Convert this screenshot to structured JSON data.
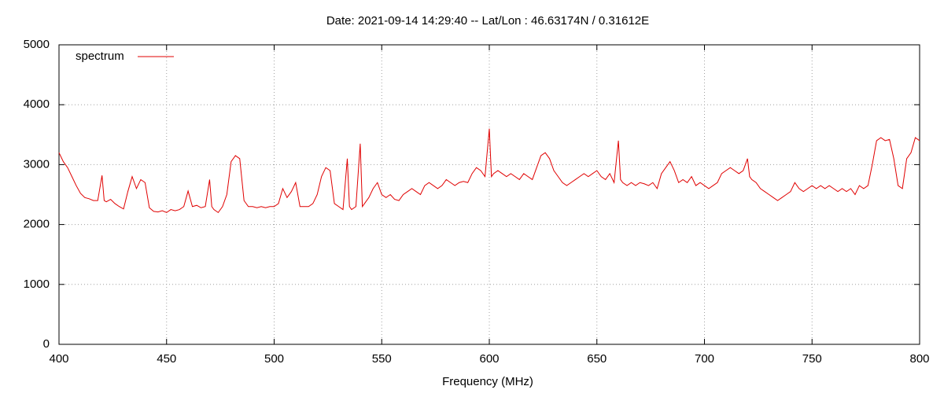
{
  "chart_data": {
    "type": "line",
    "title": "Date: 2021-09-14 14:29:40  --  Lat/Lon : 46.63174N / 0.31612E",
    "x_label": "Frequency (MHz)",
    "x": [
      400,
      402,
      404,
      406,
      408,
      410,
      412,
      414,
      416,
      418,
      420,
      421,
      422,
      424,
      426,
      428,
      430,
      432,
      434,
      436,
      438,
      440,
      442,
      444,
      446,
      448,
      450,
      452,
      454,
      456,
      458,
      460,
      462,
      464,
      466,
      468,
      470,
      471,
      472,
      474,
      476,
      478,
      480,
      482,
      484,
      486,
      488,
      490,
      492,
      494,
      496,
      498,
      500,
      502,
      504,
      506,
      508,
      510,
      512,
      514,
      516,
      518,
      520,
      522,
      524,
      526,
      528,
      530,
      532,
      534,
      535,
      536,
      538,
      540,
      541,
      542,
      544,
      546,
      548,
      550,
      552,
      554,
      556,
      558,
      560,
      562,
      564,
      566,
      568,
      570,
      572,
      574,
      576,
      578,
      580,
      582,
      584,
      586,
      588,
      590,
      592,
      594,
      596,
      598,
      600,
      601,
      602,
      604,
      606,
      608,
      610,
      612,
      614,
      616,
      618,
      620,
      622,
      624,
      626,
      628,
      630,
      632,
      634,
      636,
      638,
      640,
      642,
      644,
      646,
      648,
      650,
      652,
      654,
      656,
      658,
      660,
      661,
      662,
      664,
      666,
      668,
      670,
      672,
      674,
      676,
      678,
      680,
      682,
      684,
      686,
      688,
      690,
      692,
      694,
      696,
      698,
      700,
      702,
      704,
      706,
      708,
      710,
      712,
      714,
      716,
      718,
      720,
      721,
      722,
      724,
      726,
      728,
      730,
      732,
      734,
      736,
      738,
      740,
      742,
      744,
      746,
      748,
      750,
      752,
      754,
      756,
      758,
      760,
      762,
      764,
      766,
      768,
      770,
      772,
      774,
      776,
      778,
      780,
      782,
      784,
      786,
      788,
      790,
      792,
      794,
      796,
      798,
      800
    ],
    "series": [
      {
        "name": "spectrum",
        "color": "#e00000",
        "values": [
          3200,
          3050,
          2950,
          2800,
          2650,
          2520,
          2450,
          2430,
          2400,
          2400,
          2820,
          2400,
          2380,
          2420,
          2350,
          2300,
          2260,
          2550,
          2800,
          2600,
          2750,
          2700,
          2280,
          2220,
          2210,
          2230,
          2200,
          2250,
          2230,
          2250,
          2300,
          2560,
          2300,
          2320,
          2280,
          2300,
          2750,
          2300,
          2250,
          2200,
          2300,
          2500,
          3050,
          3150,
          3100,
          2400,
          2300,
          2300,
          2280,
          2300,
          2280,
          2300,
          2300,
          2350,
          2600,
          2450,
          2550,
          2700,
          2300,
          2300,
          2300,
          2350,
          2500,
          2800,
          2950,
          2900,
          2350,
          2300,
          2250,
          3100,
          2300,
          2250,
          2300,
          3350,
          2300,
          2350,
          2450,
          2600,
          2700,
          2500,
          2450,
          2500,
          2420,
          2400,
          2500,
          2550,
          2600,
          2550,
          2500,
          2650,
          2700,
          2650,
          2600,
          2650,
          2750,
          2700,
          2650,
          2700,
          2720,
          2700,
          2850,
          2950,
          2900,
          2800,
          3600,
          2800,
          2850,
          2900,
          2850,
          2800,
          2850,
          2800,
          2750,
          2850,
          2800,
          2750,
          2950,
          3150,
          3200,
          3100,
          2900,
          2800,
          2700,
          2650,
          2700,
          2750,
          2800,
          2850,
          2800,
          2850,
          2900,
          2800,
          2750,
          2850,
          2700,
          3400,
          2750,
          2700,
          2650,
          2700,
          2650,
          2700,
          2680,
          2650,
          2700,
          2600,
          2850,
          2950,
          3050,
          2900,
          2700,
          2750,
          2700,
          2800,
          2650,
          2700,
          2650,
          2600,
          2650,
          2700,
          2850,
          2900,
          2950,
          2900,
          2850,
          2900,
          3100,
          2800,
          2750,
          2700,
          2600,
          2550,
          2500,
          2450,
          2400,
          2450,
          2500,
          2550,
          2700,
          2600,
          2550,
          2600,
          2650,
          2600,
          2650,
          2600,
          2650,
          2600,
          2550,
          2600,
          2550,
          2600,
          2500,
          2650,
          2600,
          2650,
          3000,
          3400,
          3450,
          3400,
          3420,
          3100,
          2650,
          2600,
          3100,
          3200,
          3450,
          3400
        ]
      }
    ],
    "xlim": [
      400,
      800
    ],
    "xticks": [
      400,
      450,
      500,
      550,
      600,
      650,
      700,
      750,
      800
    ],
    "ylim": [
      0,
      5000
    ],
    "yticks": [
      0,
      1000,
      2000,
      3000,
      4000,
      5000
    ],
    "grid": true,
    "legend": "top-left"
  }
}
